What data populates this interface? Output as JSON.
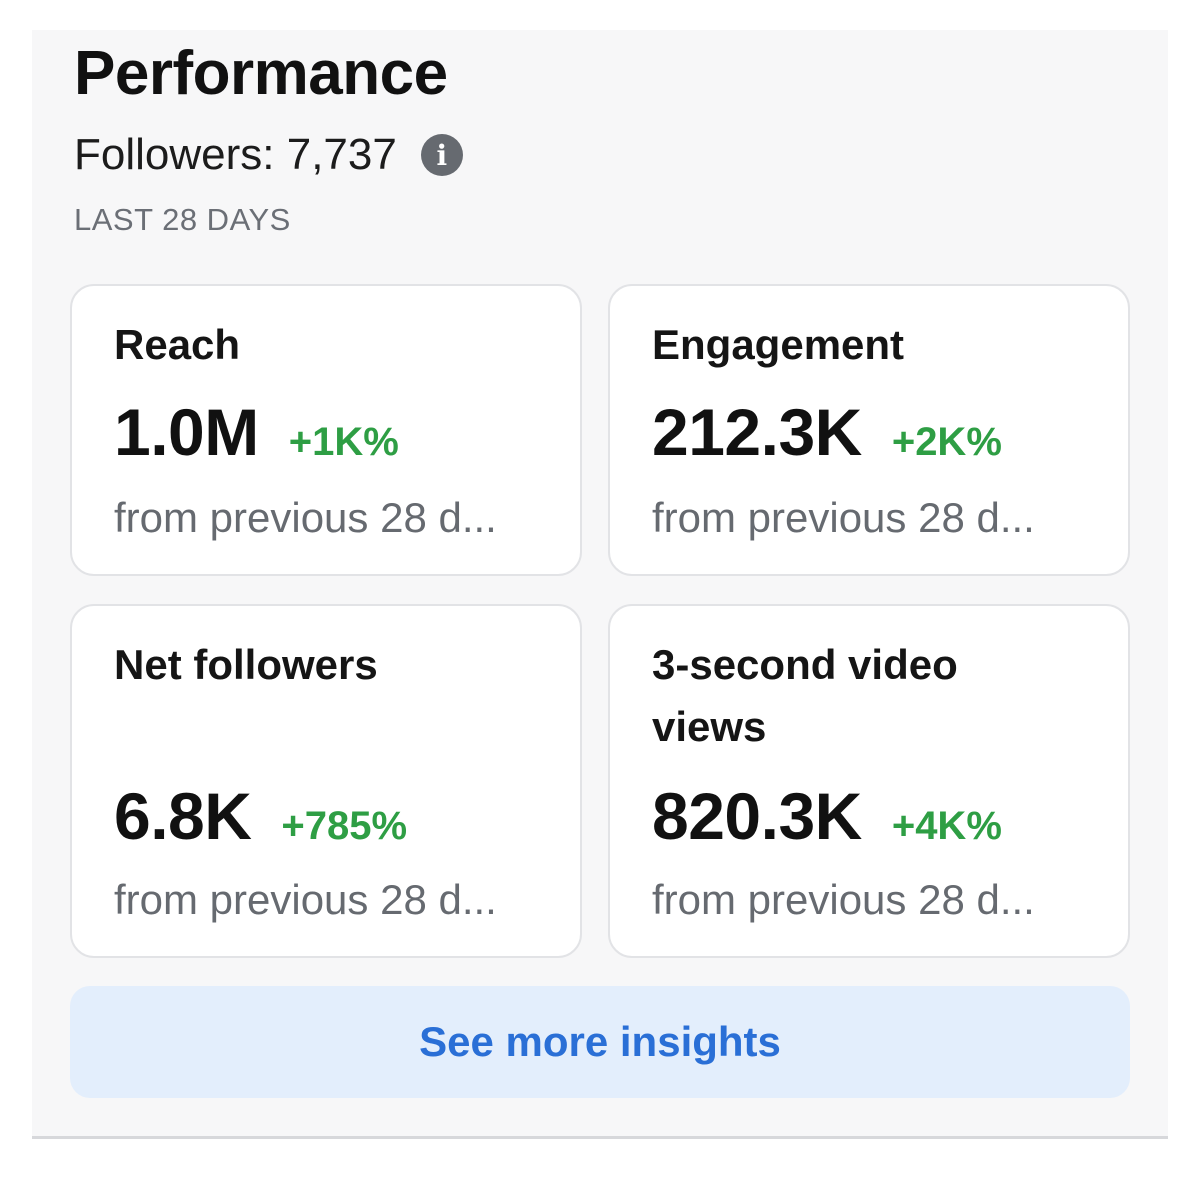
{
  "header": {
    "title": "Performance",
    "followers_text": "Followers: 7,737",
    "info_icon_glyph": "i",
    "period_label": "LAST 28 DAYS"
  },
  "cards": [
    {
      "title": "Reach",
      "value": "1.0M",
      "change": "+1K%",
      "subtitle": "from previous 28 d..."
    },
    {
      "title": "Engagement",
      "value": "212.3K",
      "change": "+2K%",
      "subtitle": "from previous 28 d..."
    },
    {
      "title": "Net followers",
      "value": "6.8K",
      "change": "+785%",
      "subtitle": "from previous 28 d..."
    },
    {
      "title": "3-second video views",
      "value": "820.3K",
      "change": "+4K%",
      "subtitle": "from previous 28 d..."
    }
  ],
  "actions": {
    "see_more_label": "See more insights"
  },
  "colors": {
    "positive_change": "#2e9e44",
    "button_text": "#2a6fd6",
    "button_bg": "#e3eefc"
  }
}
